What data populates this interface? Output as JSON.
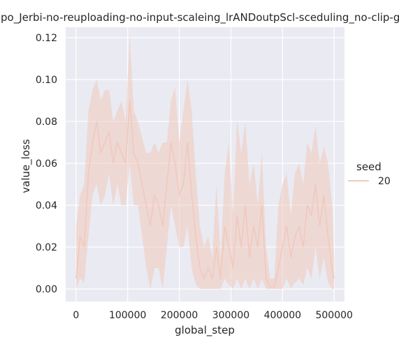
{
  "chart_data": {
    "type": "line",
    "title": "ppo_Jerbi-no-reuploading-no-input-scaleing_lrANDoutpScl-sceduling_no-clip-gr",
    "xlabel": "global_step",
    "ylabel": "value_loss",
    "xlim": [
      -20000,
      520000
    ],
    "ylim": [
      -0.006,
      0.125
    ],
    "xticks": [
      0,
      100000,
      200000,
      300000,
      400000,
      500000
    ],
    "xtick_labels": [
      "0",
      "100000",
      "200000",
      "300000",
      "400000",
      "500000"
    ],
    "yticks": [
      0.0,
      0.02,
      0.04,
      0.06,
      0.08,
      0.1,
      0.12
    ],
    "ytick_labels": [
      "0.00",
      "0.02",
      "0.04",
      "0.06",
      "0.08",
      "0.10",
      "0.12"
    ],
    "grid": true,
    "background": "#eaeaf2",
    "legend": {
      "title": "seed",
      "placement": "right-outside",
      "entries": [
        {
          "label": "20",
          "color": "#f0c9bc"
        }
      ]
    },
    "series": [
      {
        "name": "20",
        "color": "#f0c9bc",
        "x": [
          0,
          8000,
          16000,
          24000,
          32000,
          40000,
          48000,
          56000,
          64000,
          72000,
          80000,
          88000,
          96000,
          104000,
          112000,
          120000,
          128000,
          136000,
          144000,
          152000,
          160000,
          168000,
          176000,
          184000,
          192000,
          200000,
          208000,
          216000,
          224000,
          232000,
          240000,
          248000,
          256000,
          264000,
          272000,
          280000,
          288000,
          296000,
          304000,
          312000,
          320000,
          328000,
          336000,
          344000,
          352000,
          360000,
          368000,
          376000,
          384000,
          392000,
          400000,
          408000,
          416000,
          424000,
          432000,
          440000,
          448000,
          456000,
          464000,
          472000,
          480000,
          488000,
          496000,
          500000
        ],
        "y": [
          0.005,
          0.025,
          0.02,
          0.055,
          0.07,
          0.08,
          0.065,
          0.07,
          0.075,
          0.06,
          0.07,
          0.065,
          0.06,
          0.09,
          0.065,
          0.06,
          0.05,
          0.04,
          0.03,
          0.045,
          0.04,
          0.03,
          0.05,
          0.07,
          0.06,
          0.045,
          0.05,
          0.07,
          0.045,
          0.025,
          0.01,
          0.005,
          0.01,
          0.005,
          0.02,
          0.005,
          0.03,
          0.02,
          0.01,
          0.035,
          0.02,
          0.04,
          0.015,
          0.03,
          0.02,
          0.04,
          0.005,
          0.001,
          0.001,
          0.01,
          0.02,
          0.03,
          0.015,
          0.025,
          0.03,
          0.02,
          0.04,
          0.035,
          0.05,
          0.03,
          0.045,
          0.025,
          0.01,
          0.005
        ],
        "upper": [
          0.03,
          0.045,
          0.05,
          0.085,
          0.095,
          0.1,
          0.09,
          0.095,
          0.095,
          0.08,
          0.085,
          0.09,
          0.08,
          0.121,
          0.085,
          0.08,
          0.072,
          0.065,
          0.065,
          0.07,
          0.065,
          0.07,
          0.07,
          0.09,
          0.096,
          0.07,
          0.085,
          0.1,
          0.085,
          0.055,
          0.03,
          0.02,
          0.025,
          0.015,
          0.05,
          0.015,
          0.055,
          0.07,
          0.035,
          0.081,
          0.065,
          0.08,
          0.05,
          0.06,
          0.04,
          0.065,
          0.02,
          0.005,
          0.005,
          0.04,
          0.05,
          0.055,
          0.035,
          0.055,
          0.06,
          0.05,
          0.07,
          0.065,
          0.078,
          0.06,
          0.068,
          0.06,
          0.04,
          0.015
        ],
        "lower": [
          0.0,
          0.005,
          0.003,
          0.025,
          0.045,
          0.05,
          0.04,
          0.045,
          0.055,
          0.04,
          0.05,
          0.04,
          0.04,
          0.06,
          0.04,
          0.04,
          0.025,
          0.01,
          0.0,
          0.01,
          0.01,
          0.0,
          0.02,
          0.04,
          0.03,
          0.02,
          0.02,
          0.03,
          0.01,
          0.002,
          0.0,
          0.0,
          0.0,
          0.0,
          0.0,
          0.0,
          0.005,
          0.002,
          0.0,
          0.005,
          0.0,
          0.005,
          0.0,
          0.005,
          0.0,
          0.005,
          0.0,
          0.0,
          0.0,
          0.0,
          0.0,
          0.005,
          0.0,
          0.003,
          0.005,
          0.002,
          0.01,
          0.005,
          0.02,
          0.005,
          0.015,
          0.003,
          0.0,
          0.0
        ]
      }
    ]
  }
}
